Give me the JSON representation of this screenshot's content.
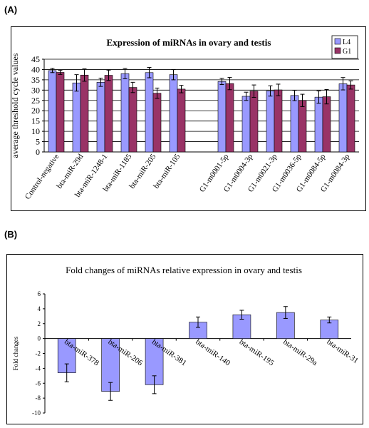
{
  "panels": {
    "a_label": "(A)",
    "b_label": "(B)"
  },
  "colors": {
    "series_1": "#9999ff",
    "series_2": "#993366",
    "grid": "#000000"
  },
  "chart_data": [
    {
      "type": "bar",
      "title": "Expression of miRNAs in ovary and testis",
      "xlabel": "",
      "ylabel": "average threshold cycle values",
      "ylim": [
        0,
        45
      ],
      "yticks": [
        0,
        5,
        10,
        15,
        20,
        25,
        30,
        35,
        40,
        45
      ],
      "grid": true,
      "legend_position": "top-right",
      "categories": [
        "Control-negative",
        "bta-miR-29d",
        "bta-miR-1248-1",
        "bta-miR-1185",
        "bta-miR-205",
        "bta-miR-105",
        "",
        "G1-m0001-5p",
        "G1-m0004-3p",
        "G1-m0021-3p",
        "G1-m0036-5p",
        "G1-m0084-5p",
        "G1-m0084-3p"
      ],
      "series": [
        {
          "name": "L4",
          "color": "#9999ff",
          "values": [
            39.5,
            33.5,
            33.8,
            38,
            38.5,
            37.5,
            null,
            34.2,
            27,
            29.6,
            27.4,
            26.6,
            33.1
          ],
          "errors": [
            1.0,
            4.0,
            2.0,
            2.5,
            2.5,
            2.5,
            null,
            1.5,
            2.0,
            2.5,
            2.5,
            3.0,
            3.0
          ]
        },
        {
          "name": "G1",
          "color": "#993366",
          "values": [
            38.6,
            37.3,
            37.2,
            31.3,
            28.5,
            30.5,
            null,
            33.2,
            29.5,
            30.1,
            25,
            26.8,
            32.5
          ],
          "errors": [
            1.0,
            3.0,
            2.5,
            2.5,
            2.5,
            1.8,
            null,
            3.0,
            3.0,
            2.8,
            3.0,
            3.5,
            2.0
          ]
        }
      ]
    },
    {
      "type": "bar",
      "title": "Fold changes of miRNAs relative expression in ovary and testis",
      "xlabel": "",
      "ylabel": "Fold changes",
      "ylim": [
        -10,
        6
      ],
      "yticks": [
        -10,
        -8,
        -6,
        -4,
        -2,
        0,
        2,
        4,
        6
      ],
      "grid": false,
      "categories": [
        "bta-miR-378",
        "bta-miR-206",
        "bta-miR-381",
        "bta-miR-140",
        "bta-miR-195",
        "bta-miR-29a",
        "bta-miR-31"
      ],
      "series": [
        {
          "color": "#9999ff",
          "values": [
            -4.6,
            -7.1,
            -6.2,
            2.2,
            3.2,
            3.5,
            2.5
          ],
          "errors": [
            1.2,
            1.2,
            1.2,
            0.7,
            0.6,
            0.8,
            0.4
          ]
        }
      ]
    }
  ]
}
